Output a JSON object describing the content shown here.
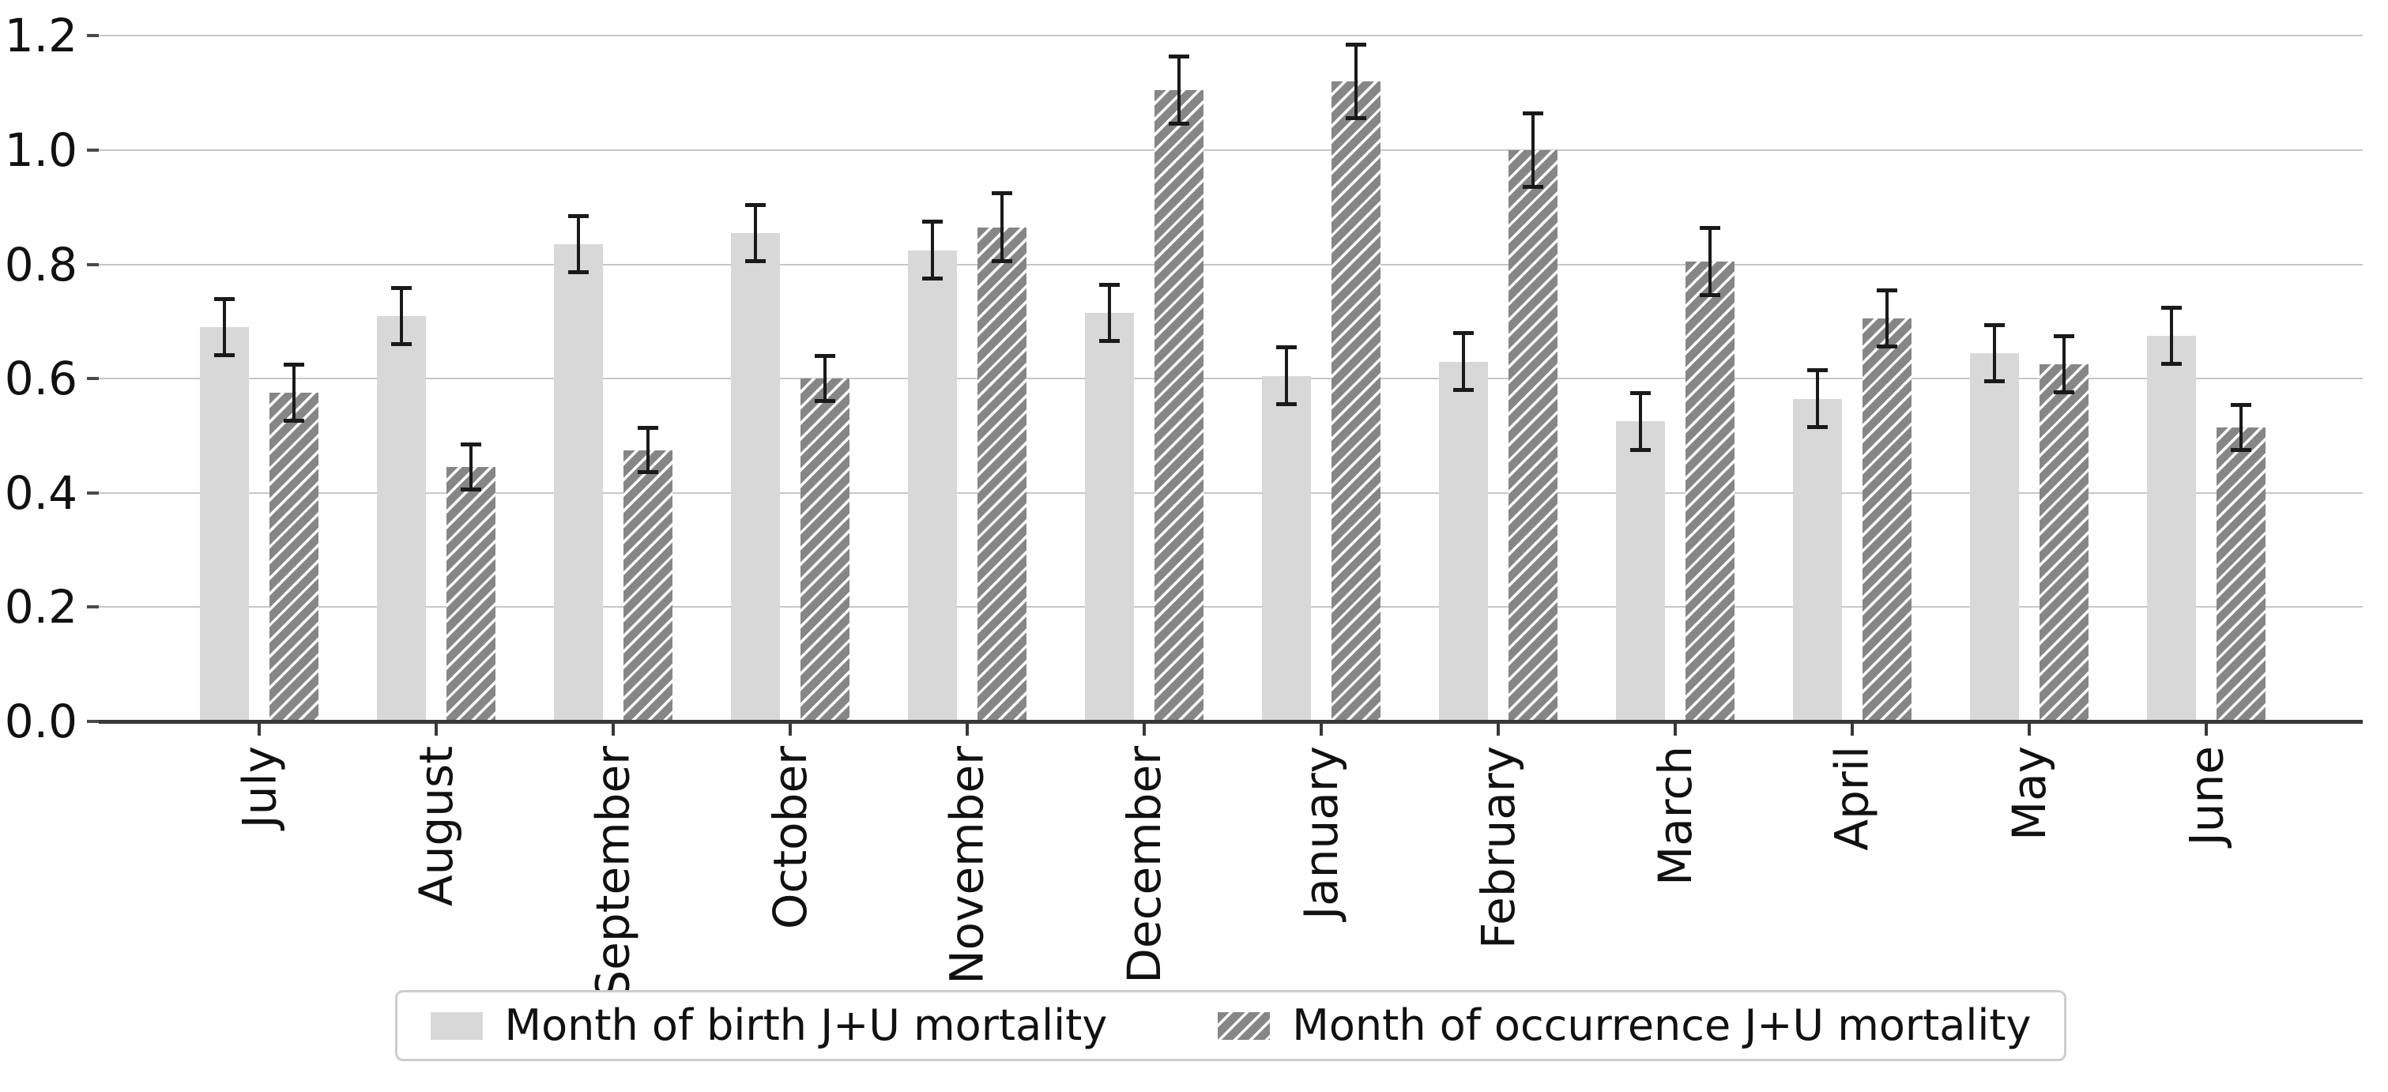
{
  "chart_data": {
    "type": "bar",
    "title": "",
    "xlabel": "",
    "ylabel": "",
    "categories": [
      "July",
      "August",
      "September",
      "October",
      "November",
      "December",
      "January",
      "February",
      "March",
      "April",
      "May",
      "June"
    ],
    "series": [
      {
        "key": "birth",
        "name": "Month of birth J+U mortality",
        "style": "solid",
        "color": "#d8d8d8",
        "values": [
          0.69,
          0.71,
          0.835,
          0.855,
          0.825,
          0.715,
          0.605,
          0.63,
          0.525,
          0.565,
          0.645,
          0.675
        ],
        "errors": [
          0.05,
          0.05,
          0.05,
          0.05,
          0.05,
          0.05,
          0.05,
          0.05,
          0.05,
          0.05,
          0.05,
          0.05
        ]
      },
      {
        "key": "occurrence",
        "name": "Month of occurrence J+U mortality",
        "style": "hatched",
        "color": "#868686",
        "hatch_color": "#ffffff",
        "values": [
          0.575,
          0.445,
          0.475,
          0.6,
          0.865,
          1.105,
          1.12,
          1.0,
          0.805,
          0.705,
          0.625,
          0.515
        ],
        "errors": [
          0.05,
          0.04,
          0.04,
          0.04,
          0.06,
          0.06,
          0.065,
          0.065,
          0.06,
          0.05,
          0.05,
          0.04
        ]
      }
    ],
    "y_ticks": [
      "0.0",
      "0.2",
      "0.4",
      "0.6",
      "0.8",
      "1.0",
      "1.2"
    ],
    "ylim": [
      0.0,
      1.25
    ],
    "grid": true,
    "error_bars": true,
    "legend_position": "lower center",
    "colors": {
      "grid": "#c7c7c7",
      "axis": "#383838",
      "tick": "#4a4a4a",
      "text": "#111111",
      "error_bar": "#1a1a1a",
      "background": "#ffffff",
      "legend_border": "#cdcdcd"
    }
  }
}
